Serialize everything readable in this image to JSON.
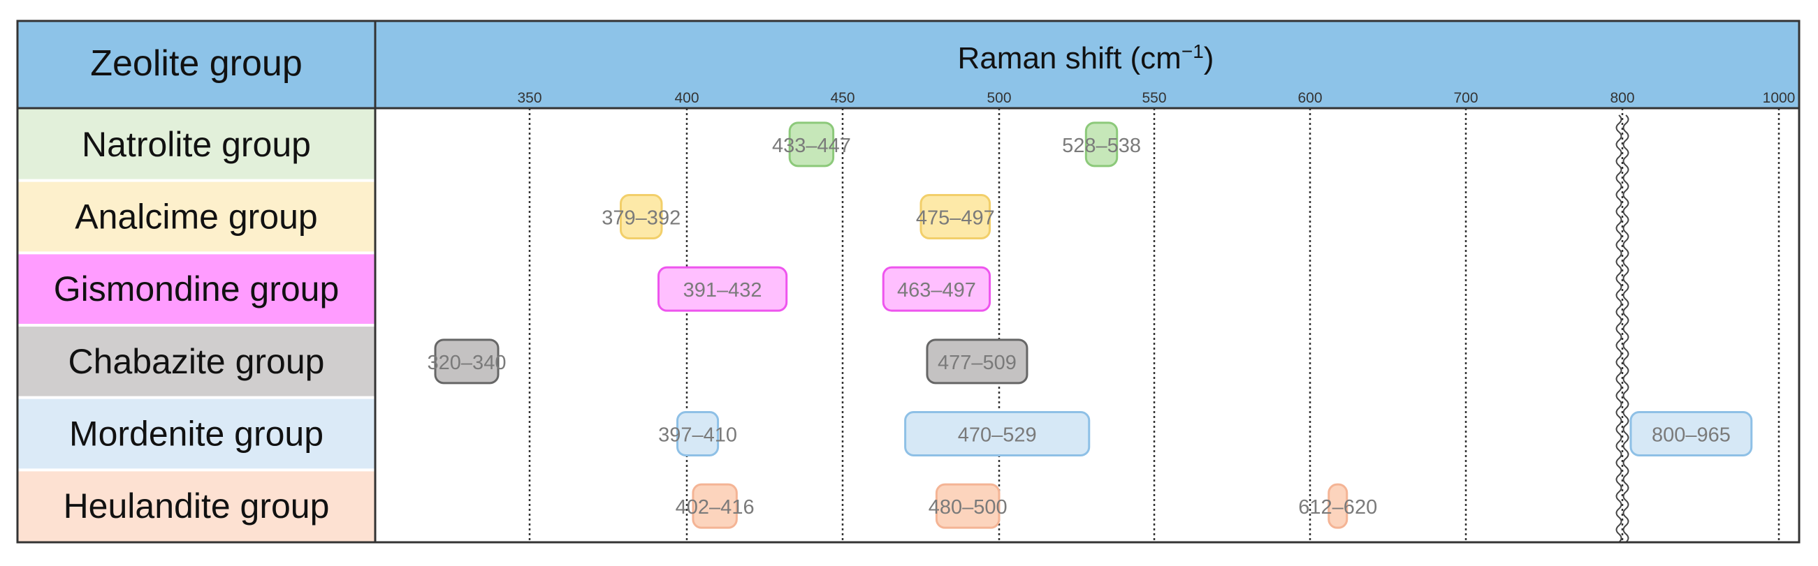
{
  "header": {
    "left_title": "Zeolite group",
    "right_title": "Raman shift (cm",
    "right_title_sup": "−1",
    "right_title_close": ")"
  },
  "colors": {
    "header_bg": "#8dc3e8",
    "border": "#333333"
  },
  "chart_data": {
    "type": "range-bar",
    "x_ticks": [
      {
        "value": 350,
        "label": "350"
      },
      {
        "value": 400,
        "label": "400"
      },
      {
        "value": 450,
        "label": "450"
      },
      {
        "value": 500,
        "label": "500"
      },
      {
        "value": 550,
        "label": "550"
      },
      {
        "value": 600,
        "label": "600"
      },
      {
        "value": 700,
        "label": "700"
      },
      {
        "value": 800,
        "label": "800"
      },
      {
        "value": 1000,
        "label": "1000"
      }
    ],
    "axis_break": "between 700 and 800 (wavy break line before 800)",
    "grid": "dotted vertical lines at each tick",
    "groups": [
      {
        "name": "Natrolite group",
        "row_color": "#e2f0da",
        "bar_fill": "#c6e7b9",
        "bar_stroke": "#8cc97a",
        "ranges": [
          {
            "label": "433–447",
            "min": 433,
            "max": 447
          },
          {
            "label": "528–538",
            "min": 528,
            "max": 538
          }
        ]
      },
      {
        "name": "Analcime group",
        "row_color": "#fdf0cc",
        "bar_fill": "#fde9a8",
        "bar_stroke": "#f2cf6a",
        "ranges": [
          {
            "label": "379–392",
            "min": 379,
            "max": 392
          },
          {
            "label": "475–497",
            "min": 475,
            "max": 497
          }
        ]
      },
      {
        "name": "Gismondine group",
        "row_color": "#ff9cff",
        "bar_fill": "#ffbfff",
        "bar_stroke": "#ee55ee",
        "ranges": [
          {
            "label": "391–432",
            "min": 391,
            "max": 432
          },
          {
            "label": "463–497",
            "min": 463,
            "max": 497
          }
        ]
      },
      {
        "name": "Chabazite group",
        "row_color": "#d0cece",
        "bar_fill": "#c4c2c2",
        "bar_stroke": "#666666",
        "ranges": [
          {
            "label": "320–340",
            "min": 320,
            "max": 340
          },
          {
            "label": "477–509",
            "min": 477,
            "max": 509
          }
        ]
      },
      {
        "name": "Mordenite group",
        "row_color": "#dbeaf7",
        "bar_fill": "#d6e8f6",
        "bar_stroke": "#8ec0e6",
        "ranges": [
          {
            "label": "397–410",
            "min": 397,
            "max": 410
          },
          {
            "label": "470–529",
            "min": 470,
            "max": 529
          },
          {
            "label": "800–965",
            "min": 800,
            "max": 965
          }
        ]
      },
      {
        "name": "Heulandite group",
        "row_color": "#fde1d2",
        "bar_fill": "#fcd4bd",
        "bar_stroke": "#f4b495",
        "ranges": [
          {
            "label": "402–416",
            "min": 402,
            "max": 416
          },
          {
            "label": "480–500",
            "min": 480,
            "max": 500
          },
          {
            "label": "612–620",
            "min": 612,
            "max": 620
          }
        ]
      }
    ]
  }
}
